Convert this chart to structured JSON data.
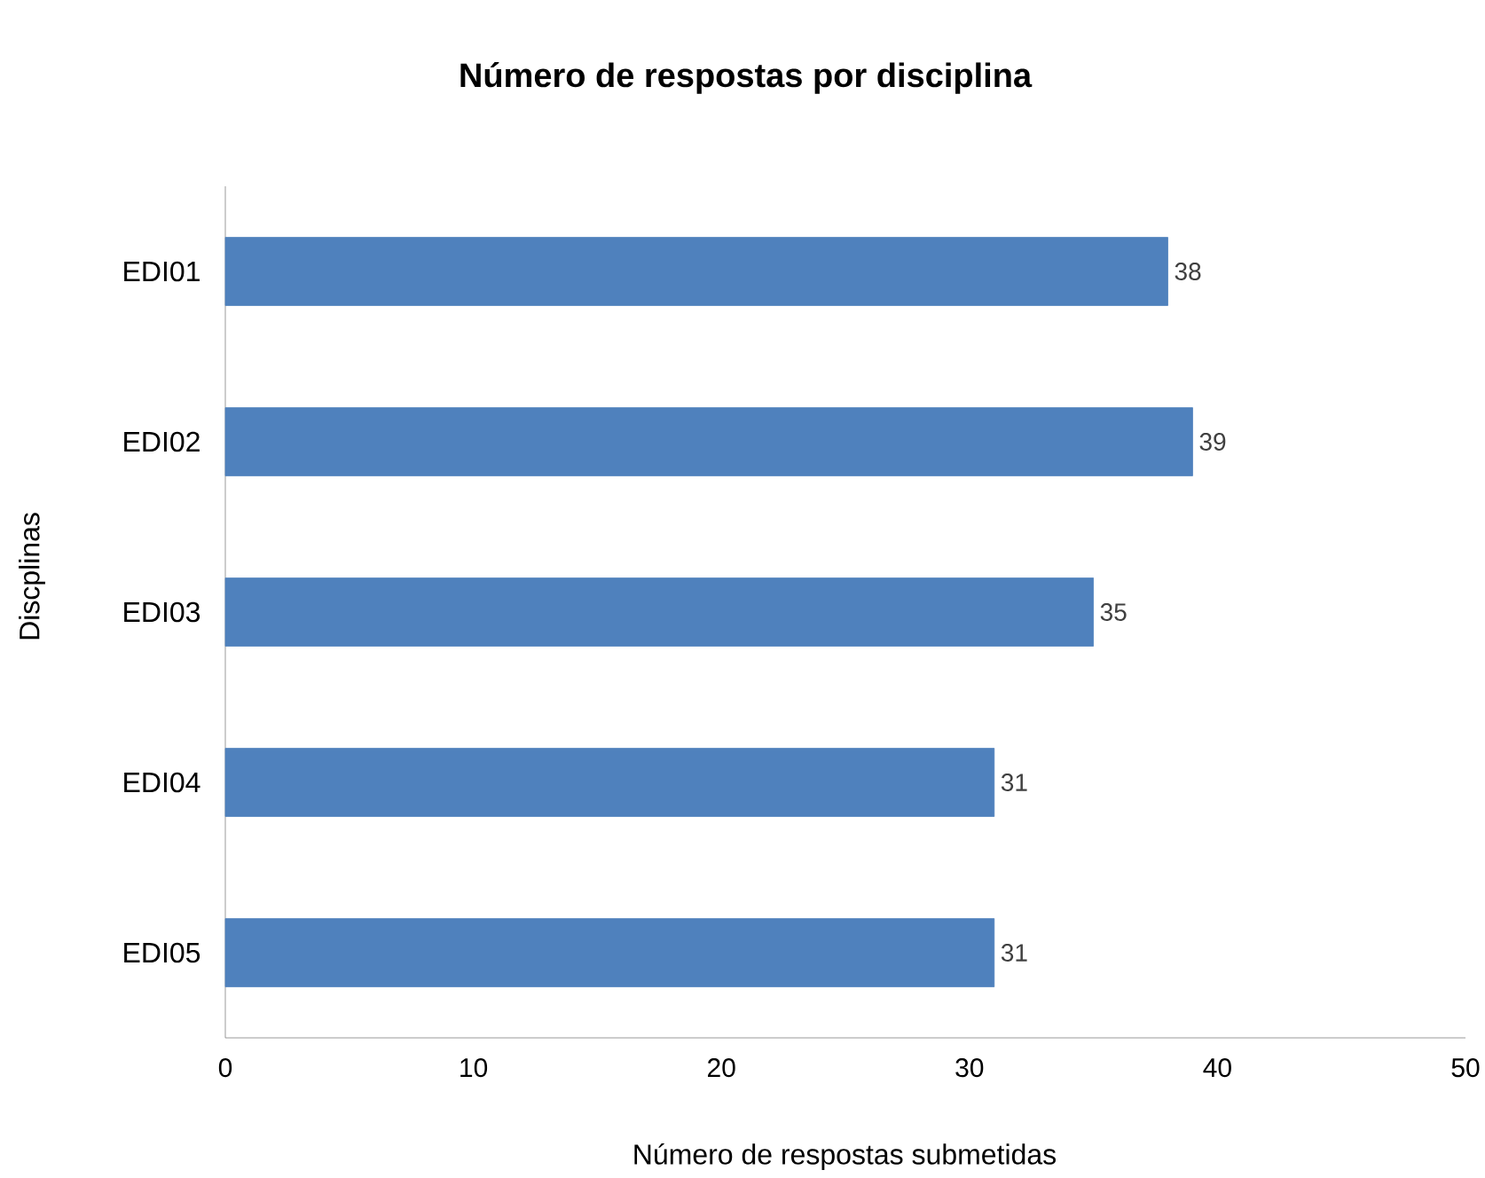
{
  "chart_data": {
    "type": "bar",
    "orientation": "horizontal",
    "title": "Número de respostas por disciplina",
    "xlabel": "Número de respostas submetidas",
    "ylabel": "Discplinas",
    "categories": [
      "EDI01",
      "EDI02",
      "EDI03",
      "EDI04",
      "EDI05"
    ],
    "values": [
      38,
      39,
      35,
      31,
      31
    ],
    "color": "#4f81bd",
    "data_labels": true,
    "xlim": [
      0,
      50
    ],
    "xticks": [
      0,
      10,
      20,
      30,
      40,
      50
    ]
  }
}
